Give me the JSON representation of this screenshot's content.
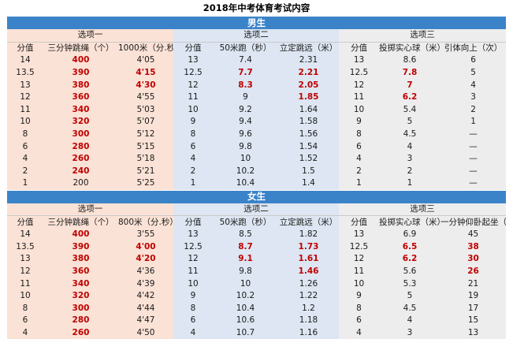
{
  "title": "2018年中考体育考试内容",
  "sections": [
    {
      "name": "男生",
      "groups": [
        "选项一",
        "选项二",
        "选项三"
      ],
      "headers": [
        "分值",
        "三分钟跳绳（个）",
        "1000米（分.秒）",
        "分值",
        "50米跑（秒）",
        "立定跳远（米）",
        "分值",
        "投掷实心球（米）",
        "引体向上（次）"
      ],
      "rows": [
        [
          "14",
          "400",
          "4'05",
          "13",
          "7.4",
          "2.31",
          "13",
          "8.6",
          "6"
        ],
        [
          "13.5",
          "390",
          "4'15",
          "12.5",
          "7.7",
          "2.21",
          "12.5",
          "7.8",
          "5"
        ],
        [
          "13",
          "380",
          "4'30",
          "12",
          "8.3",
          "2.05",
          "12",
          "7",
          "4"
        ],
        [
          "12",
          "360",
          "4'55",
          "11",
          "9",
          "1.85",
          "11",
          "6.2",
          "3"
        ],
        [
          "11",
          "340",
          "5'03",
          "10",
          "9.2",
          "1.64",
          "10",
          "5.4",
          "2"
        ],
        [
          "10",
          "320",
          "5'07",
          "9",
          "9.4",
          "1.58",
          "9",
          "5",
          "1"
        ],
        [
          "8",
          "300",
          "5'12",
          "8",
          "9.6",
          "1.56",
          "8",
          "4.5",
          "—"
        ],
        [
          "6",
          "280",
          "5'15",
          "6",
          "9.8",
          "1.54",
          "6",
          "4",
          "—"
        ],
        [
          "4",
          "260",
          "5'18",
          "4",
          "10",
          "1.52",
          "4",
          "3",
          "—"
        ],
        [
          "2",
          "240",
          "5'21",
          "2",
          "10.2",
          "1.5",
          "2",
          "2",
          "—"
        ],
        [
          "1",
          "200",
          "5'25",
          "1",
          "10.4",
          "1.4",
          "1",
          "1",
          "—"
        ]
      ],
      "red_cells": [
        [
          0,
          1
        ],
        [
          1,
          1
        ],
        [
          1,
          2
        ],
        [
          1,
          4
        ],
        [
          1,
          5
        ],
        [
          1,
          7
        ],
        [
          2,
          1
        ],
        [
          2,
          2
        ],
        [
          2,
          4
        ],
        [
          2,
          5
        ],
        [
          2,
          7
        ],
        [
          3,
          1
        ],
        [
          3,
          5
        ],
        [
          3,
          7
        ],
        [
          4,
          1
        ],
        [
          5,
          1
        ],
        [
          6,
          1
        ],
        [
          7,
          1
        ],
        [
          8,
          1
        ],
        [
          9,
          1
        ]
      ]
    },
    {
      "name": "女生",
      "groups": [
        "选项一",
        "选项二",
        "选项三"
      ],
      "headers": [
        "分值",
        "三分钟跳绳（个）",
        "800米（分.秒）",
        "分值",
        "50米跑（秒）",
        "立定跳远（米）",
        "分值",
        "投掷实心球（米）",
        "一分钟仰卧起坐（次）"
      ],
      "rows": [
        [
          "14",
          "400",
          "3'55",
          "13",
          "8.5",
          "1.82",
          "13",
          "6.9",
          "45"
        ],
        [
          "13.5",
          "390",
          "4'00",
          "12.5",
          "8.7",
          "1.73",
          "12.5",
          "6.5",
          "38"
        ],
        [
          "13",
          "380",
          "4'20",
          "12",
          "9.1",
          "1.61",
          "12",
          "6.2",
          "30"
        ],
        [
          "12",
          "360",
          "4'36",
          "11",
          "9.8",
          "1.46",
          "11",
          "5.6",
          "26"
        ],
        [
          "11",
          "340",
          "4'39",
          "10",
          "10",
          "1.26",
          "10",
          "5.3",
          "21"
        ],
        [
          "10",
          "320",
          "4'42",
          "9",
          "10.2",
          "1.22",
          "9",
          "5",
          "19"
        ],
        [
          "8",
          "300",
          "4'44",
          "8",
          "10.4",
          "1.2",
          "8",
          "4.5",
          "17"
        ],
        [
          "6",
          "280",
          "4'47",
          "6",
          "10.6",
          "1.18",
          "6",
          "4",
          "15"
        ],
        [
          "4",
          "260",
          "4'50",
          "4",
          "10.7",
          "1.16",
          "4",
          "3",
          "13"
        ]
      ],
      "red_cells": [
        [
          0,
          1
        ],
        [
          1,
          1
        ],
        [
          1,
          2
        ],
        [
          1,
          4
        ],
        [
          1,
          5
        ],
        [
          1,
          7
        ],
        [
          1,
          8
        ],
        [
          2,
          1
        ],
        [
          2,
          2
        ],
        [
          2,
          4
        ],
        [
          2,
          5
        ],
        [
          2,
          7
        ],
        [
          2,
          8
        ],
        [
          3,
          1
        ],
        [
          3,
          5
        ],
        [
          3,
          8
        ],
        [
          4,
          1
        ],
        [
          5,
          1
        ],
        [
          6,
          1
        ],
        [
          7,
          1
        ],
        [
          8,
          1
        ]
      ]
    }
  ],
  "colors": {
    "section_bar": "#3b83c9",
    "option1_bg": "#fbe2d6",
    "option2_bg": "#dde6f2",
    "option3_bg": "#ededed",
    "highlight_text": "#c00000"
  }
}
